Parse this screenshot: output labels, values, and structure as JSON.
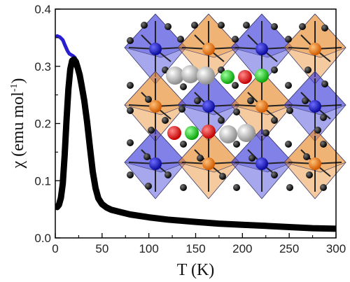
{
  "chart_data": {
    "type": "line",
    "title": "",
    "xlabel": "T (K)",
    "ylabel_main": "χ (emu mol",
    "ylabel_sup": "-1",
    "ylabel_close": ")",
    "xlim": [
      0,
      300
    ],
    "ylim": [
      0.0,
      0.4
    ],
    "x_ticks": [
      0,
      50,
      100,
      150,
      200,
      250,
      300
    ],
    "y_ticks": [
      0.0,
      0.1,
      0.2,
      0.3,
      0.4
    ],
    "x_tick_labels": [
      "0",
      "50",
      "100",
      "150",
      "200",
      "250",
      "300"
    ],
    "y_tick_labels": [
      "0.0",
      "0.1",
      "0.2",
      "0.3",
      "0.4"
    ],
    "grid": false,
    "legend": "none",
    "inset": "crystal structure: octahedra (blue and orange) with spheres (black, grey, red, green)",
    "series": [
      {
        "color": "#2a1fd0",
        "x": [
          2,
          5,
          8,
          10,
          13,
          15,
          17,
          19,
          21,
          23,
          25,
          28,
          31,
          34,
          37,
          40,
          43,
          46,
          50,
          55,
          60,
          70,
          80,
          100,
          120,
          150,
          175,
          200,
          225,
          250,
          275,
          300
        ],
        "y": [
          0.353,
          0.351,
          0.346,
          0.338,
          0.327,
          0.322,
          0.32,
          0.318,
          0.315,
          0.308,
          0.298,
          0.276,
          0.245,
          0.205,
          0.158,
          0.116,
          0.087,
          0.069,
          0.059,
          0.053,
          0.049,
          0.045,
          0.041,
          0.036,
          0.032,
          0.028,
          0.025,
          0.023,
          0.021,
          0.019,
          0.017,
          0.016
        ]
      },
      {
        "color": "#000000",
        "x": [
          2,
          4,
          6,
          8,
          10,
          12,
          14,
          16,
          18,
          20,
          22,
          24,
          26,
          28,
          31,
          34,
          37,
          40,
          43,
          46,
          50,
          55,
          60,
          70,
          80,
          100,
          120,
          150,
          175,
          200,
          225,
          250,
          275,
          300
        ],
        "y": [
          0.054,
          0.058,
          0.07,
          0.095,
          0.145,
          0.205,
          0.26,
          0.295,
          0.31,
          0.312,
          0.308,
          0.297,
          0.285,
          0.268,
          0.24,
          0.203,
          0.158,
          0.116,
          0.087,
          0.069,
          0.059,
          0.053,
          0.049,
          0.045,
          0.041,
          0.036,
          0.032,
          0.028,
          0.025,
          0.023,
          0.021,
          0.019,
          0.017,
          0.016
        ]
      }
    ]
  }
}
